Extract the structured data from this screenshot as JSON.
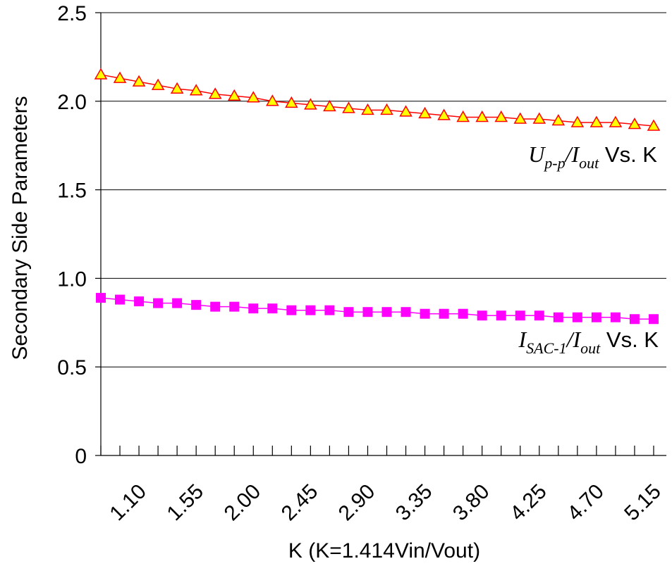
{
  "chart_data": {
    "type": "line",
    "xlabel": "K (K=1.414Vin/Vout)",
    "ylabel": "Secondary Side Parameters",
    "ylim": [
      0,
      2.5
    ],
    "yticks": [
      "0",
      "0.5",
      "1.0",
      "1.5",
      "2.0",
      "2.5"
    ],
    "xlim": [
      0.8,
      5.25
    ],
    "xticks": [
      "1.10",
      "1.55",
      "2.00",
      "2.45",
      "2.90",
      "3.35",
      "3.80",
      "4.25",
      "4.70",
      "5.15"
    ],
    "grid": "horizontal",
    "x": [
      0.8,
      0.95,
      1.1,
      1.25,
      1.4,
      1.55,
      1.7,
      1.85,
      2.0,
      2.15,
      2.3,
      2.45,
      2.6,
      2.75,
      2.9,
      3.05,
      3.2,
      3.35,
      3.5,
      3.65,
      3.8,
      3.95,
      4.1,
      4.25,
      4.4,
      4.55,
      4.7,
      4.85,
      5.0,
      5.15
    ],
    "series": [
      {
        "marker": "triangle",
        "color": "#ff0000",
        "fill": "#ffff00",
        "values": [
          2.15,
          2.13,
          2.11,
          2.09,
          2.07,
          2.06,
          2.04,
          2.03,
          2.02,
          2.0,
          1.99,
          1.98,
          1.97,
          1.96,
          1.95,
          1.95,
          1.94,
          1.93,
          1.92,
          1.91,
          1.91,
          1.91,
          1.9,
          1.9,
          1.89,
          1.88,
          1.88,
          1.88,
          1.87,
          1.86
        ],
        "label": {
          "main": "U",
          "sub": "p-p",
          "div": "/I",
          "sub2": "out",
          "tail": " Vs. K"
        }
      },
      {
        "marker": "square",
        "color": "#ff00ff",
        "fill": "#ff00ff",
        "values": [
          0.89,
          0.88,
          0.87,
          0.86,
          0.86,
          0.85,
          0.84,
          0.84,
          0.83,
          0.83,
          0.82,
          0.82,
          0.82,
          0.81,
          0.81,
          0.81,
          0.81,
          0.8,
          0.8,
          0.8,
          0.79,
          0.79,
          0.79,
          0.79,
          0.78,
          0.78,
          0.78,
          0.78,
          0.77,
          0.77
        ],
        "label": {
          "main": "I",
          "sub": "SAC-1",
          "div": "/I",
          "sub2": "out",
          "tail": " Vs. K"
        }
      }
    ]
  }
}
